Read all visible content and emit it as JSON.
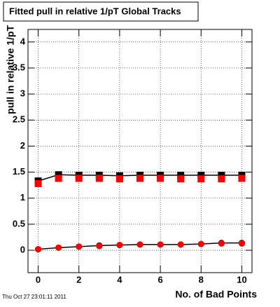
{
  "chart_data": {
    "type": "scatter",
    "title": "Fitted pull in relative 1/pT  Global Tracks",
    "x_label": "No. of Bad Points",
    "y_label": "pull in relative 1/pT",
    "footer": "Thu Oct 27 23:01:11 2011",
    "x": [
      0,
      1,
      2,
      3,
      4,
      5,
      6,
      7,
      8,
      9,
      10
    ],
    "xlim": [
      -0.5,
      10.5
    ],
    "ylim": [
      -0.43,
      4.24
    ],
    "xticks": [
      0,
      2,
      4,
      6,
      8,
      10
    ],
    "yticks": [
      0,
      0.5,
      1,
      1.5,
      2,
      2.5,
      3,
      3.5,
      4
    ],
    "grid": true,
    "series": [
      {
        "color": "#000000",
        "marker": "square",
        "line": true,
        "values": [
          1.33,
          1.45,
          1.44,
          1.44,
          1.43,
          1.44,
          1.44,
          1.44,
          1.44,
          1.44,
          1.44
        ]
      },
      {
        "color": "#ff0000",
        "marker": "square",
        "line": false,
        "values": [
          1.28,
          1.38,
          1.38,
          1.38,
          1.37,
          1.38,
          1.38,
          1.37,
          1.37,
          1.37,
          1.38
        ]
      },
      {
        "color": "#000000",
        "marker": "circle",
        "line": true,
        "values": [
          0.02,
          0.05,
          0.07,
          0.09,
          0.1,
          0.11,
          0.11,
          0.11,
          0.12,
          0.14,
          0.14
        ]
      },
      {
        "color": "#ff0000",
        "marker": "circle",
        "line": false,
        "values": [
          0.02,
          0.05,
          0.07,
          0.08,
          0.1,
          0.11,
          0.11,
          0.11,
          0.12,
          0.13,
          0.13
        ]
      }
    ]
  }
}
